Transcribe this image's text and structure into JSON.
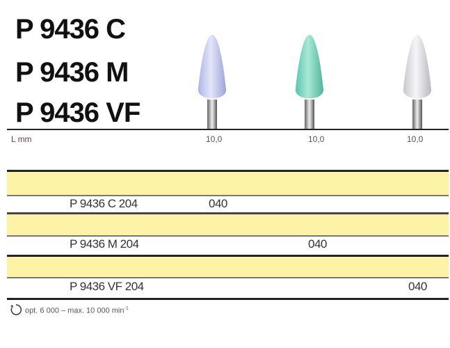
{
  "titles": [
    "P 9436 C",
    "P 9436 M",
    "P 9436 VF"
  ],
  "length_label": "L mm",
  "lengths": [
    "10,0",
    "10,0",
    "10,0"
  ],
  "bur_colors": [
    "#c9cdf0",
    "#86d9c4",
    "#e3e3e6"
  ],
  "band_color": "#fdf3a6",
  "rows": [
    {
      "code": "P 9436 C 204",
      "size": "040"
    },
    {
      "code": "P 9436 M 204",
      "size": "040"
    },
    {
      "code": "P 9436 VF 204",
      "size": "040"
    }
  ],
  "footer": {
    "icon": "rotation-icon",
    "text": "opt. 6 000 – max. 10 000 min",
    "sup": "-1"
  }
}
